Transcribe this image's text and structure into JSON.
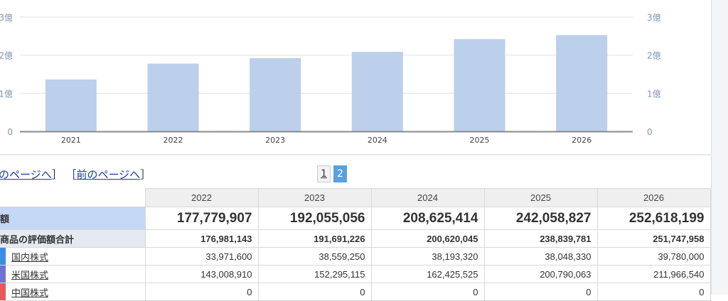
{
  "chart_data": {
    "type": "bar",
    "categories": [
      "2021",
      "2022",
      "2023",
      "2024",
      "2025",
      "2026"
    ],
    "values": [
      136000000,
      177779907,
      192055056,
      208625414,
      242058827,
      252618199
    ],
    "ylim": [
      0,
      300000000
    ],
    "yticks": [
      {
        "v": 0,
        "label": "0"
      },
      {
        "v": 100000000,
        "label": "1億"
      },
      {
        "v": 200000000,
        "label": "2億"
      },
      {
        "v": 300000000,
        "label": "3億"
      }
    ],
    "grid": true,
    "bar_color": "#bccfeb",
    "axis_label_color": "#8094b4"
  },
  "pager": {
    "prev_first": "のページへ",
    "prev": "前のページへ",
    "pages": [
      "1",
      "2"
    ],
    "current": "2"
  },
  "table": {
    "years": [
      "2022",
      "2023",
      "2024",
      "2025",
      "2026"
    ],
    "total": {
      "label": "額",
      "values": [
        "177,779,907",
        "192,055,056",
        "208,625,414",
        "242,058,827",
        "252,618,199"
      ]
    },
    "subtotal": {
      "label": "商品の評価額合計",
      "values": [
        "176,981,143",
        "191,691,226",
        "200,620,045",
        "238,839,781",
        "251,747,958"
      ]
    },
    "items": [
      {
        "label": "国内株式",
        "color": "#3a8ee6",
        "values": [
          "33,971,600",
          "38,559,250",
          "38,193,320",
          "38,048,330",
          "39,780,000"
        ]
      },
      {
        "label": "米国株式",
        "color": "#6b73d6",
        "values": [
          "143,008,910",
          "152,295,115",
          "162,425,525",
          "200,790,063",
          "211,966,540"
        ]
      },
      {
        "label": "中国株式",
        "color": "#e85a5a",
        "values": [
          "0",
          "0",
          "0",
          "0",
          "0"
        ]
      }
    ]
  }
}
